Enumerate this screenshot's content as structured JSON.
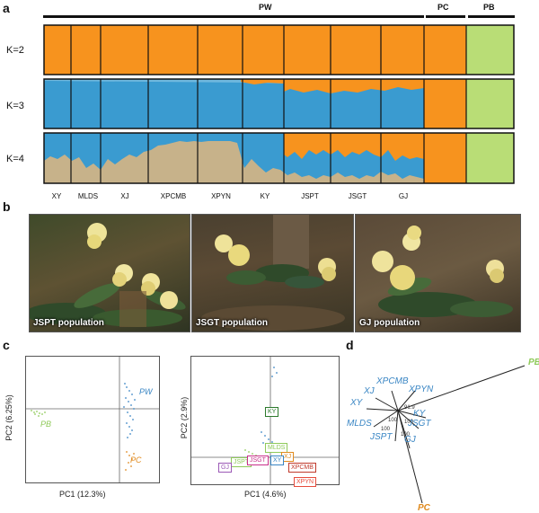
{
  "panels": {
    "a": "a",
    "b": "b",
    "c": "c",
    "d": "d"
  },
  "groups": {
    "pw": "PW",
    "pc": "PC",
    "pb": "PB"
  },
  "colors": {
    "orange": "#f7931e",
    "blue": "#3a9bd0",
    "tan": "#c7b28a",
    "green": "#b9dd76"
  },
  "structure": {
    "k_labels": [
      "K=2",
      "K=3",
      "K=4"
    ],
    "populations": [
      "XY",
      "MLDS",
      "XJ",
      "XPCMB",
      "XPYN",
      "KY",
      "JSPT",
      "JSGT",
      "GJ"
    ]
  },
  "photos": [
    {
      "caption": "JSPT population"
    },
    {
      "caption": "JSGT population"
    },
    {
      "caption": "GJ population"
    }
  ],
  "pca1": {
    "xlabel": "PC1 (12.3%)",
    "ylabel": "PC2 (6.25%)",
    "labels": {
      "pw": "PW",
      "pb": "PB",
      "pc": "PC"
    }
  },
  "pca2": {
    "xlabel": "PC1 (4.6%)",
    "ylabel": "PC2 (2.9%)",
    "tags": [
      "KY",
      "MLDS",
      "XJ",
      "JSPT",
      "JSGT",
      "XY",
      "XPCMB",
      "GJ",
      "XPYN"
    ]
  },
  "tree": {
    "labels": [
      "PB",
      "XPCMB",
      "XPYN",
      "XJ",
      "XY",
      "KY",
      "MLDS",
      "JSGT",
      "JSPT",
      "GJ",
      "PC"
    ],
    "bootstrap": [
      "91.9",
      "100",
      "100",
      "100",
      "100"
    ]
  }
}
